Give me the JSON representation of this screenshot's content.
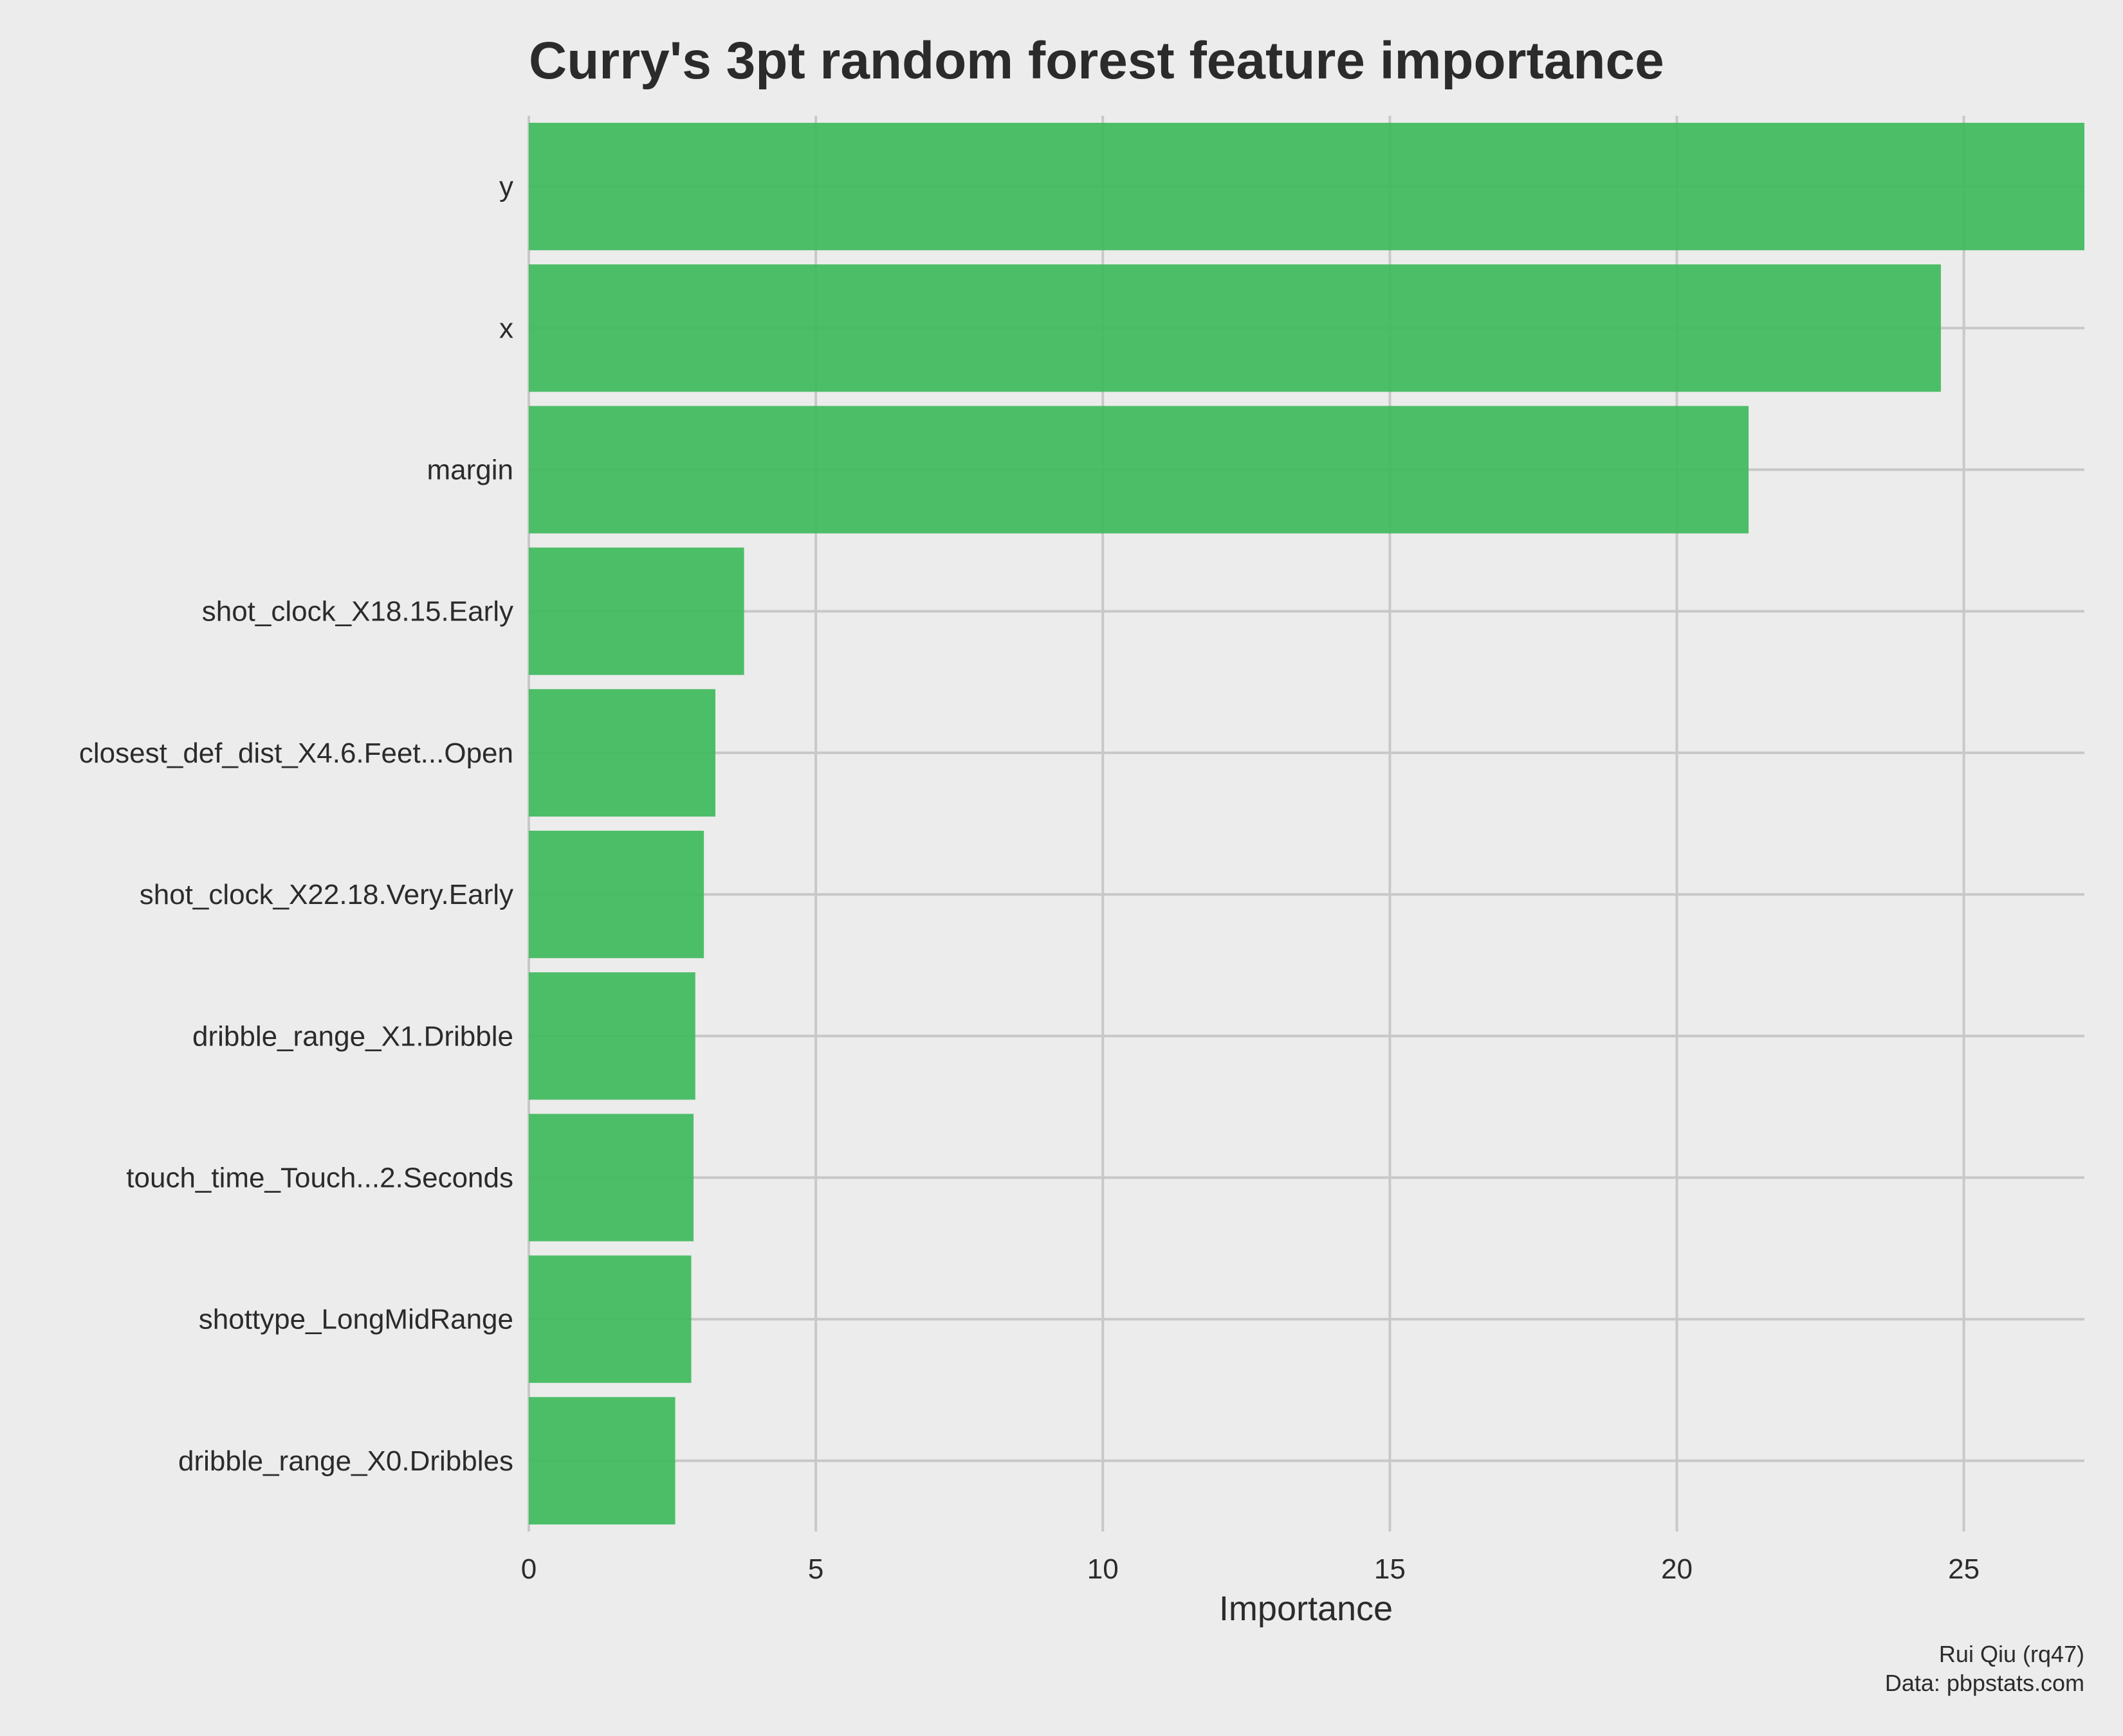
{
  "chart_data": {
    "type": "bar",
    "orientation": "horizontal",
    "title": "Curry's 3pt random forest feature importance",
    "xlabel": "Importance",
    "ylabel": "",
    "categories": [
      "y",
      "x",
      "margin",
      "shot_clock_X18.15.Early",
      "closest_def_dist_X4.6.Feet...Open",
      "shot_clock_X22.18.Very.Early",
      "dribble_range_X1.Dribble",
      "touch_time_Touch...2.Seconds",
      "shottype_LongMidRange",
      "dribble_range_X0.Dribbles"
    ],
    "values": [
      27.1,
      24.6,
      21.25,
      3.75,
      3.25,
      3.05,
      2.9,
      2.87,
      2.83,
      2.55
    ],
    "xlim": [
      0,
      27.1
    ],
    "xticks": [
      0,
      5,
      10,
      15,
      20,
      25
    ],
    "grid": true,
    "legend": "none",
    "bar_color": "#3cb95a"
  },
  "caption": {
    "author": "Rui Qiu (rq47)",
    "source": "Data: pbpstats.com"
  }
}
